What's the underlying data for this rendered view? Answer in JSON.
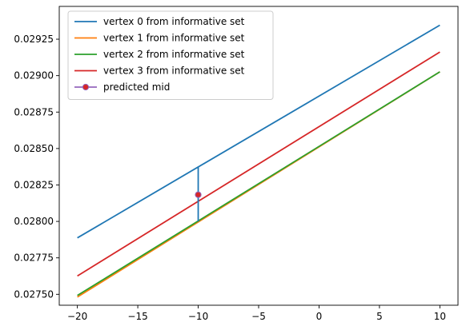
{
  "chart_data": {
    "type": "line",
    "title": "",
    "xlabel": "",
    "ylabel": "",
    "xlim": [
      -21.5,
      11.5
    ],
    "ylim": [
      0.027425,
      0.029475
    ],
    "x_ticks": [
      -20,
      -15,
      -10,
      -5,
      0,
      5,
      10
    ],
    "x_tick_labels": [
      "−20",
      "−15",
      "−10",
      "−5",
      "0",
      "5",
      "10"
    ],
    "y_ticks": [
      0.0275,
      0.02775,
      0.028,
      0.02825,
      0.0285,
      0.02875,
      0.029,
      0.02925
    ],
    "y_tick_labels": [
      "0.02750",
      "0.02775",
      "0.02800",
      "0.02825",
      "0.02850",
      "0.02875",
      "0.02900",
      "0.02925"
    ],
    "grid": false,
    "legend_position": "upper-left",
    "series": [
      {
        "name": "vertex 0 from informative set",
        "color": "#1f77b4",
        "x": [
          -20,
          10
        ],
        "y": [
          0.027887,
          0.029346
        ]
      },
      {
        "name": "vertex 1 from informative set",
        "color": "#ff7f0e",
        "x": [
          -20,
          10
        ],
        "y": [
          0.027481,
          0.029026
        ]
      },
      {
        "name": "vertex 2 from informative set",
        "color": "#2ca02c",
        "x": [
          -20,
          10
        ],
        "y": [
          0.027492,
          0.029026
        ]
      },
      {
        "name": "vertex 3 from informative set",
        "color": "#d62728",
        "x": [
          -20,
          10
        ],
        "y": [
          0.027626,
          0.029162
        ]
      }
    ],
    "predicted_mid": {
      "name": "predicted mid",
      "line_color": "#9467bd",
      "marker_face": "#d62728",
      "point": {
        "x": -10,
        "y": 0.028183
      }
    },
    "vertical_segment": {
      "color": "#1f77b4",
      "x": -10,
      "y": [
        0.028,
        0.028375
      ]
    }
  }
}
